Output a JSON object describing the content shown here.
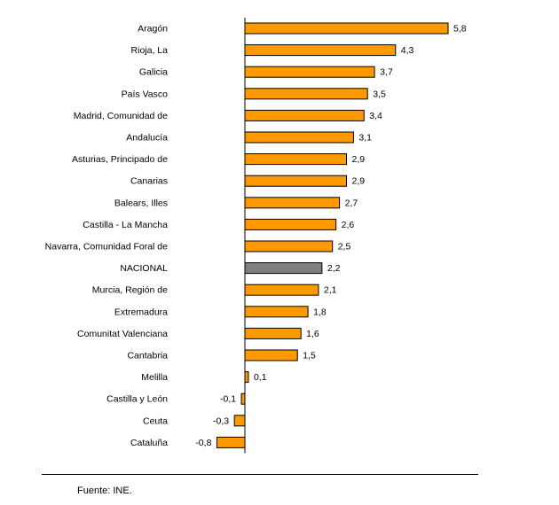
{
  "chart_data": {
    "type": "bar",
    "orientation": "horizontal",
    "categories": [
      "Aragón",
      "Rioja, La",
      "Galicia",
      "País Vasco",
      "Madrid, Comunidad de",
      "Andalucía",
      "Asturias, Principado de",
      "Canarias",
      "Balears, Illes",
      "Castilla - La Mancha",
      "Navarra, Comunidad Foral de",
      "NACIONAL",
      "Murcia, Región de",
      "Extremadura",
      "Comunitat Valenciana",
      "Cantabria",
      "Melilla",
      "Castilla y León",
      "Ceuta",
      "Cataluña"
    ],
    "values": [
      5.8,
      4.3,
      3.7,
      3.5,
      3.4,
      3.1,
      2.9,
      2.9,
      2.7,
      2.6,
      2.5,
      2.2,
      2.1,
      1.8,
      1.6,
      1.5,
      0.1,
      -0.1,
      -0.3,
      -0.8
    ],
    "value_labels": [
      "5,8",
      "4,3",
      "3,7",
      "3,5",
      "3,4",
      "3,1",
      "2,9",
      "2,9",
      "2,7",
      "2,6",
      "2,5",
      "2,2",
      "2,1",
      "1,8",
      "1,6",
      "1,5",
      "0,1",
      "-0,1",
      "-0,3",
      "-0,8"
    ],
    "highlight_category": "NACIONAL",
    "colors": {
      "bar": "#FF9900",
      "highlight": "#808080",
      "outline": "#000000"
    },
    "xlim": [
      -0.8,
      5.8
    ],
    "grid": false,
    "legend": "none"
  },
  "footer": {
    "source": "Fuente: INE."
  }
}
